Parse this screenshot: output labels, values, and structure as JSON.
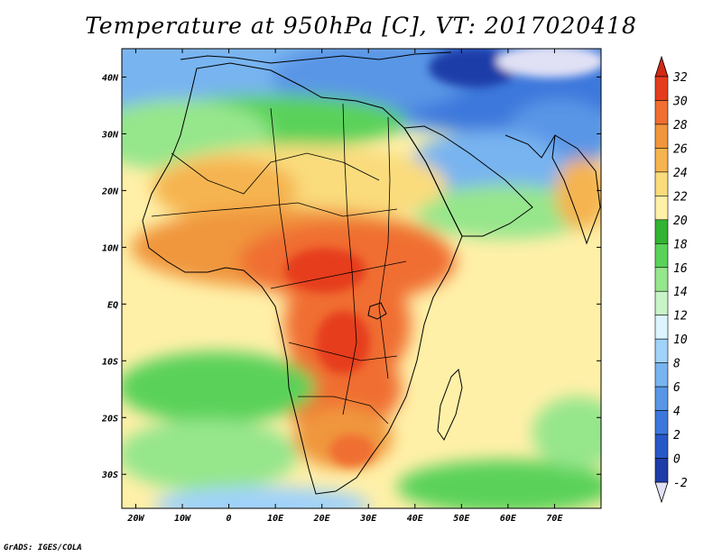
{
  "title": "Temperature at 950hPa [C], VT: 2017020418",
  "credit": "GrADS: IGES/COLA",
  "map": {
    "projection": "latlon",
    "lon_range": [
      -23,
      80
    ],
    "lat_range": [
      -36,
      45
    ],
    "lon_ticks": [
      {
        "lon": -20,
        "label": "20W"
      },
      {
        "lon": -10,
        "label": "10W"
      },
      {
        "lon": 0,
        "label": "0"
      },
      {
        "lon": 10,
        "label": "10E"
      },
      {
        "lon": 20,
        "label": "20E"
      },
      {
        "lon": 30,
        "label": "30E"
      },
      {
        "lon": 40,
        "label": "40E"
      },
      {
        "lon": 50,
        "label": "50E"
      },
      {
        "lon": 60,
        "label": "60E"
      },
      {
        "lon": 70,
        "label": "70E"
      }
    ],
    "lat_ticks": [
      {
        "lat": 40,
        "label": "40N"
      },
      {
        "lat": 30,
        "label": "30N"
      },
      {
        "lat": 20,
        "label": "20N"
      },
      {
        "lat": 10,
        "label": "10N"
      },
      {
        "lat": 0,
        "label": "EQ"
      },
      {
        "lat": -10,
        "label": "10S"
      },
      {
        "lat": -20,
        "label": "20S"
      },
      {
        "lat": -30,
        "label": "30S"
      }
    ]
  },
  "colorbar": {
    "labels": [
      "-2",
      "0",
      "2",
      "4",
      "6",
      "8",
      "10",
      "12",
      "14",
      "16",
      "18",
      "20",
      "22",
      "24",
      "26",
      "28",
      "30",
      "32"
    ],
    "colors": [
      "#1c1c8c",
      "#1e3ca8",
      "#2858c8",
      "#3c78dc",
      "#5a96e6",
      "#78b4f0",
      "#a0d2fa",
      "#dcf5ff",
      "#c8f5c8",
      "#96e68c",
      "#5ad25a",
      "#32b432",
      "#fff0a8",
      "#fadc7d",
      "#f5b450",
      "#f0963c",
      "#f06e32",
      "#e63c1e"
    ],
    "over_color": "#d22814",
    "under_color": "#e1e1f5"
  }
}
